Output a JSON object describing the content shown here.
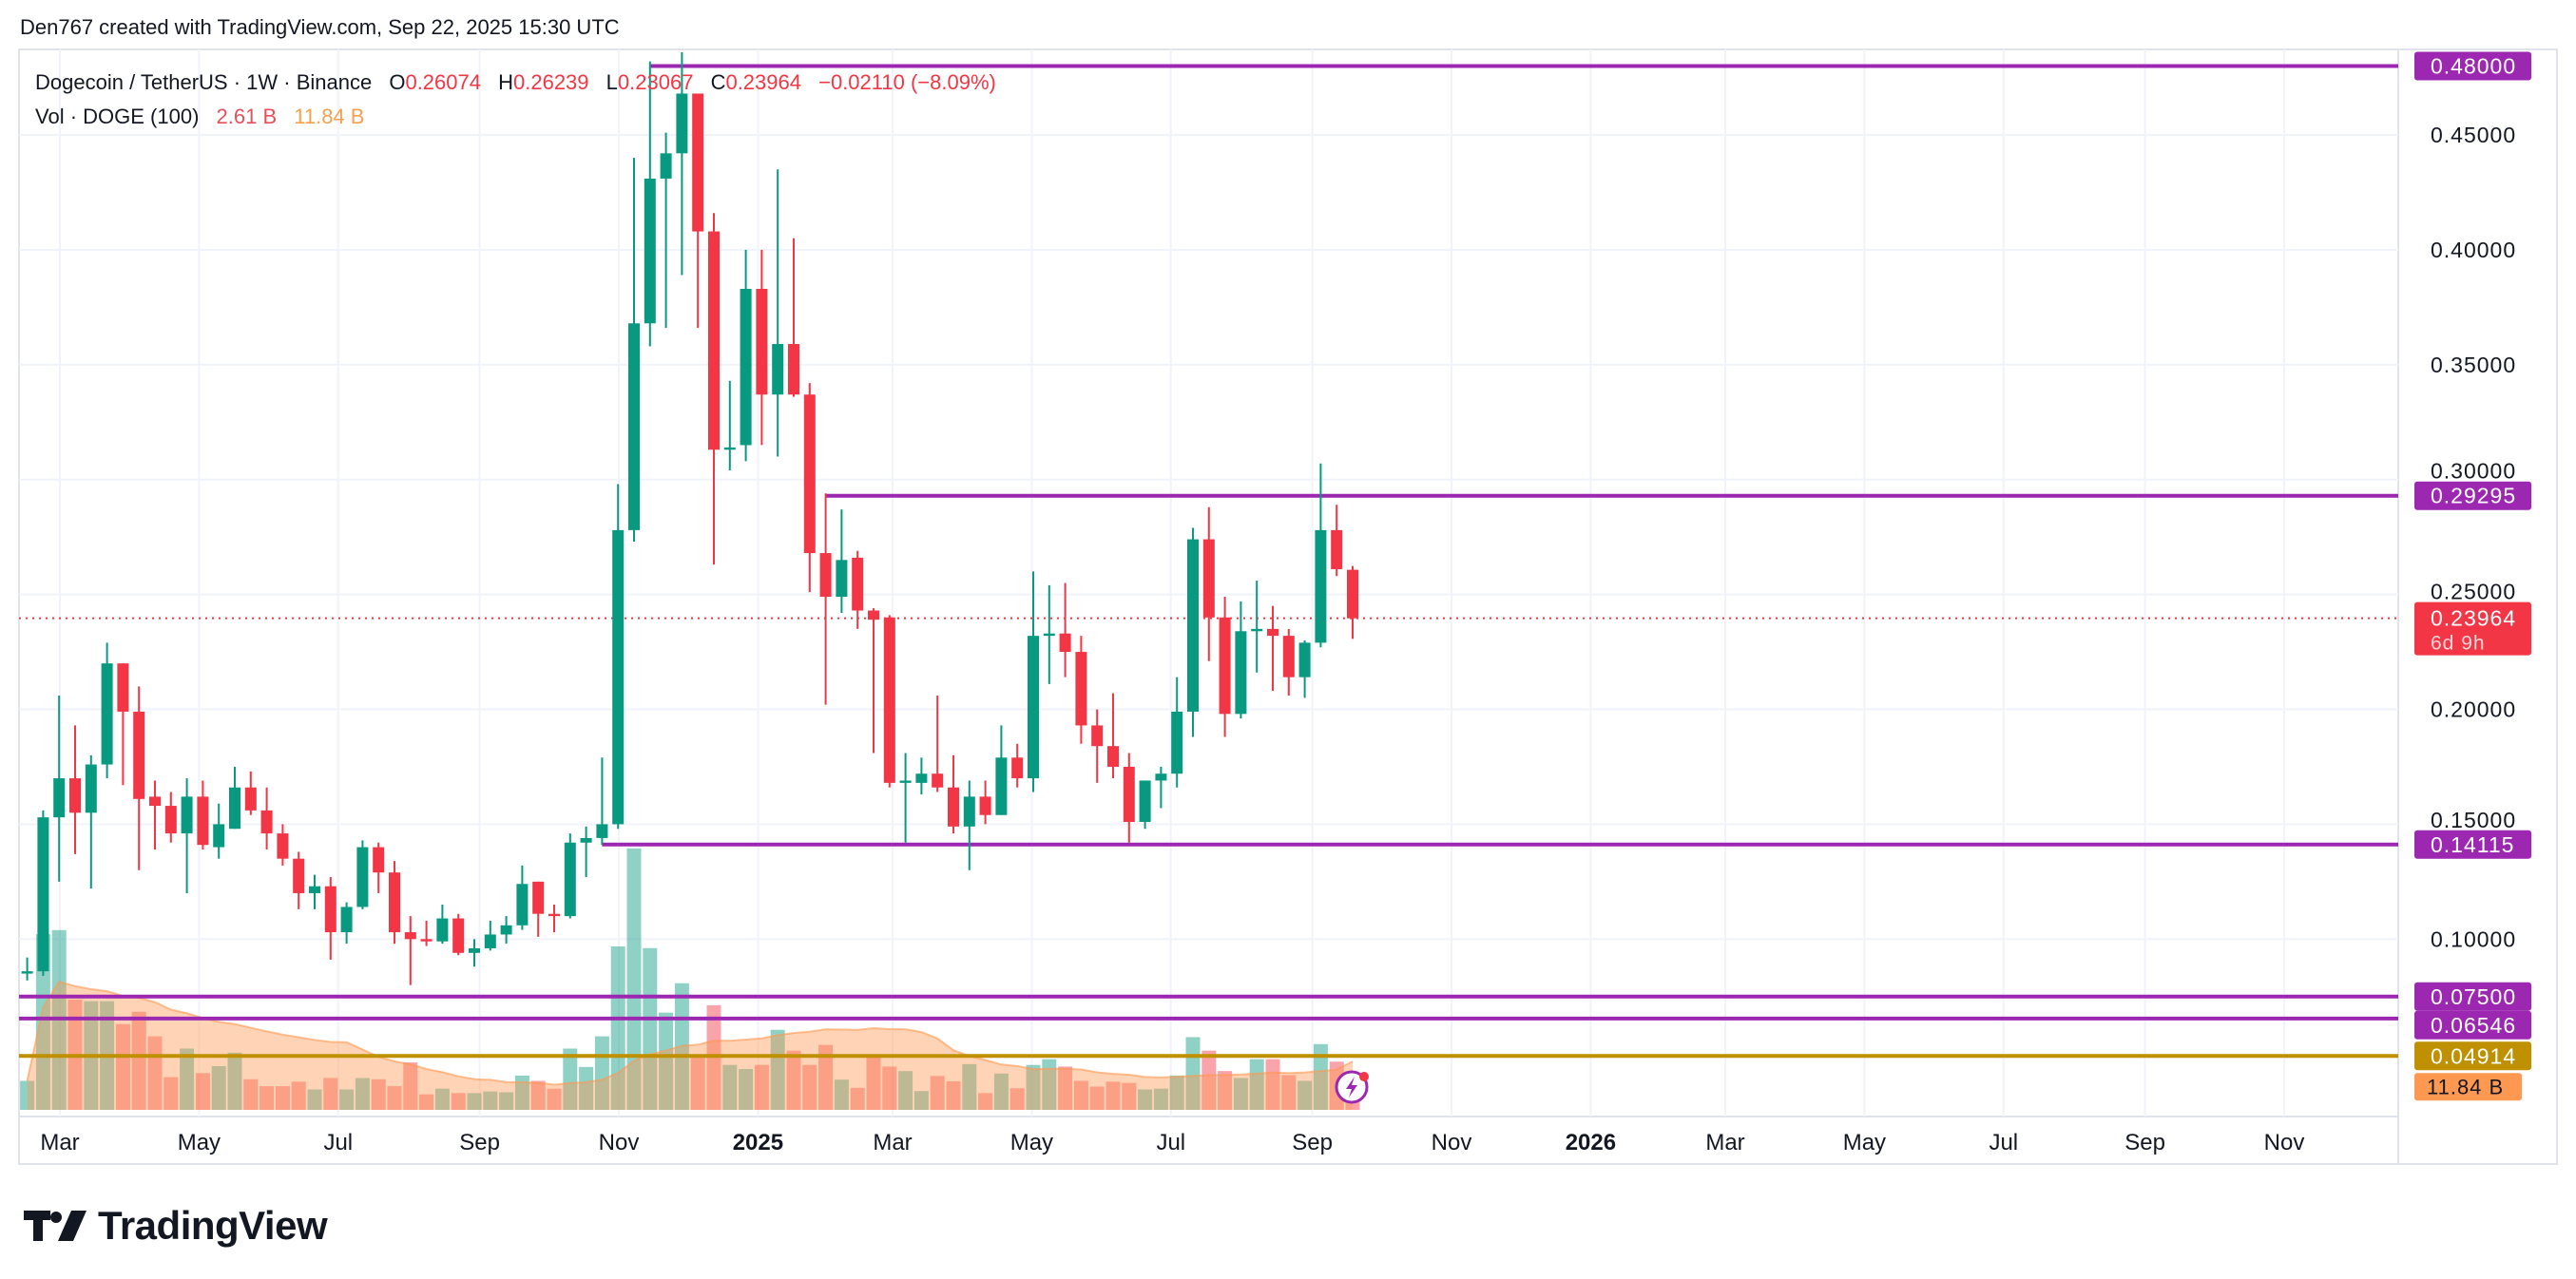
{
  "attribution": "Den767 created with TradingView.com, Sep 22, 2025 15:30 UTC",
  "legend": {
    "symbol": "Dogecoin / TetherUS · 1W · Binance",
    "o_label": "O",
    "o": "0.26074",
    "h_label": "H",
    "h": "0.26239",
    "l_label": "L",
    "l": "0.23067",
    "c_label": "C",
    "c": "0.23964",
    "change": "−0.02110 (−8.09%)",
    "vol_label": "Vol · DOGE (100)",
    "vol": "2.61 B",
    "vol_ma": "11.84 B"
  },
  "logo": {
    "text": "TradingView"
  },
  "colors": {
    "up": "#089981",
    "down": "#f23645",
    "level": "#9c27b0",
    "gold_level": "#bf9000",
    "vol_ma": "#ff9850",
    "grid": "#f0f3fa"
  },
  "chart_data": {
    "type": "candlestick",
    "interval": "1W",
    "ylim": [
      0.035,
      0.49
    ],
    "y_ticks": [
      "0.45000",
      "0.40000",
      "0.35000",
      "0.30000",
      "0.25000",
      "0.20000",
      "0.15000",
      "0.10000"
    ],
    "x_ticks": [
      {
        "label": "Mar",
        "date": "2024-03-01"
      },
      {
        "label": "May",
        "date": "2024-05-01"
      },
      {
        "label": "Jul",
        "date": "2024-07-01"
      },
      {
        "label": "Sep",
        "date": "2024-09-01"
      },
      {
        "label": "Nov",
        "date": "2024-11-01"
      },
      {
        "label": "2025",
        "date": "2025-01-01",
        "bold": true
      },
      {
        "label": "Mar",
        "date": "2025-03-01"
      },
      {
        "label": "May",
        "date": "2025-05-01"
      },
      {
        "label": "Jul",
        "date": "2025-07-01"
      },
      {
        "label": "Sep",
        "date": "2025-09-01"
      },
      {
        "label": "Nov",
        "date": "2025-11-01"
      },
      {
        "label": "2026",
        "date": "2026-01-01",
        "bold": true
      },
      {
        "label": "Mar",
        "date": "2026-03-01"
      },
      {
        "label": "May",
        "date": "2026-05-01"
      },
      {
        "label": "Jul",
        "date": "2026-07-01"
      },
      {
        "label": "Sep",
        "date": "2026-09-01"
      },
      {
        "label": "Nov",
        "date": "2026-11-01"
      }
    ],
    "candles_columns": [
      "date",
      "open",
      "high",
      "low",
      "close",
      "volume_B"
    ],
    "candles": [
      [
        "2024-02-19",
        0.085,
        0.092,
        0.082,
        0.086,
        7.1
      ],
      [
        "2024-02-26",
        0.086,
        0.156,
        0.084,
        0.153,
        43
      ],
      [
        "2024-03-04",
        0.153,
        0.206,
        0.125,
        0.17,
        44
      ],
      [
        "2024-03-11",
        0.17,
        0.193,
        0.137,
        0.155,
        27
      ],
      [
        "2024-03-18",
        0.155,
        0.18,
        0.122,
        0.176,
        26.6
      ],
      [
        "2024-03-25",
        0.176,
        0.229,
        0.17,
        0.22,
        26.6
      ],
      [
        "2024-04-01",
        0.22,
        0.22,
        0.167,
        0.199,
        21
      ],
      [
        "2024-04-08",
        0.199,
        0.21,
        0.13,
        0.161,
        24
      ],
      [
        "2024-04-15",
        0.162,
        0.169,
        0.139,
        0.158,
        18
      ],
      [
        "2024-04-22",
        0.158,
        0.164,
        0.142,
        0.146,
        8
      ],
      [
        "2024-04-29",
        0.146,
        0.17,
        0.12,
        0.162,
        15
      ],
      [
        "2024-05-06",
        0.162,
        0.169,
        0.139,
        0.141,
        9
      ],
      [
        "2024-05-13",
        0.14,
        0.159,
        0.135,
        0.15,
        10.7
      ],
      [
        "2024-05-20",
        0.148,
        0.175,
        0.148,
        0.166,
        14
      ],
      [
        "2024-05-27",
        0.166,
        0.173,
        0.154,
        0.156,
        7.5
      ],
      [
        "2024-06-03",
        0.156,
        0.166,
        0.139,
        0.146,
        5.8
      ],
      [
        "2024-06-10",
        0.146,
        0.15,
        0.132,
        0.135,
        5.8
      ],
      [
        "2024-06-17",
        0.135,
        0.138,
        0.113,
        0.12,
        6.9
      ],
      [
        "2024-06-24",
        0.12,
        0.128,
        0.113,
        0.123,
        5
      ],
      [
        "2024-07-01",
        0.123,
        0.127,
        0.091,
        0.103,
        7.8
      ],
      [
        "2024-07-08",
        0.103,
        0.116,
        0.098,
        0.114,
        5
      ],
      [
        "2024-07-15",
        0.114,
        0.143,
        0.113,
        0.14,
        7.8
      ],
      [
        "2024-07-22",
        0.14,
        0.142,
        0.12,
        0.129,
        7.5
      ],
      [
        "2024-07-29",
        0.129,
        0.134,
        0.098,
        0.103,
        5.8
      ],
      [
        "2024-08-05",
        0.103,
        0.11,
        0.08,
        0.1,
        11.6
      ],
      [
        "2024-08-12",
        0.1,
        0.108,
        0.097,
        0.099,
        3.8
      ],
      [
        "2024-08-19",
        0.099,
        0.115,
        0.098,
        0.109,
        5.2
      ],
      [
        "2024-08-26",
        0.109,
        0.111,
        0.093,
        0.094,
        4.1
      ],
      [
        "2024-09-02",
        0.094,
        0.1,
        0.088,
        0.096,
        4.1
      ],
      [
        "2024-09-09",
        0.096,
        0.108,
        0.095,
        0.102,
        4.5
      ],
      [
        "2024-09-16",
        0.102,
        0.11,
        0.098,
        0.106,
        4.3
      ],
      [
        "2024-09-23",
        0.106,
        0.132,
        0.104,
        0.124,
        8.4
      ],
      [
        "2024-09-30",
        0.125,
        0.125,
        0.101,
        0.111,
        7.1
      ],
      [
        "2024-10-07",
        0.111,
        0.115,
        0.103,
        0.11,
        5.2
      ],
      [
        "2024-10-14",
        0.11,
        0.146,
        0.109,
        0.142,
        15
      ],
      [
        "2024-10-21",
        0.142,
        0.149,
        0.127,
        0.144,
        10.5
      ],
      [
        "2024-10-28",
        0.144,
        0.179,
        0.141,
        0.15,
        18
      ],
      [
        "2024-11-04",
        0.15,
        0.298,
        0.148,
        0.278,
        40
      ],
      [
        "2024-11-11",
        0.278,
        0.44,
        0.273,
        0.368,
        64
      ],
      [
        "2024-11-18",
        0.368,
        0.482,
        0.358,
        0.431,
        39.6
      ],
      [
        "2024-11-25",
        0.431,
        0.451,
        0.366,
        0.442,
        23.8
      ],
      [
        "2024-12-02",
        0.442,
        0.486,
        0.389,
        0.468,
        31
      ],
      [
        "2024-12-09",
        0.468,
        0.468,
        0.366,
        0.408,
        13
      ],
      [
        "2024-12-16",
        0.408,
        0.416,
        0.263,
        0.313,
        25.6
      ],
      [
        "2024-12-23",
        0.313,
        0.343,
        0.304,
        0.314,
        11
      ],
      [
        "2024-12-30",
        0.315,
        0.4,
        0.308,
        0.383,
        10
      ],
      [
        "2025-01-06",
        0.383,
        0.4,
        0.315,
        0.337,
        11
      ],
      [
        "2025-01-13",
        0.337,
        0.435,
        0.31,
        0.359,
        19.6
      ],
      [
        "2025-01-20",
        0.359,
        0.405,
        0.336,
        0.337,
        14.5
      ],
      [
        "2025-01-27",
        0.337,
        0.342,
        0.251,
        0.268,
        11
      ],
      [
        "2025-02-03",
        0.268,
        0.294,
        0.202,
        0.249,
        15.9
      ],
      [
        "2025-02-10",
        0.249,
        0.287,
        0.242,
        0.265,
        7.4
      ],
      [
        "2025-02-17",
        0.266,
        0.269,
        0.235,
        0.243,
        5.4
      ],
      [
        "2025-02-24",
        0.243,
        0.244,
        0.181,
        0.239,
        13.4
      ],
      [
        "2025-03-03",
        0.24,
        0.241,
        0.166,
        0.168,
        10.6
      ],
      [
        "2025-03-10",
        0.168,
        0.181,
        0.142,
        0.169,
        9.5
      ],
      [
        "2025-03-17",
        0.168,
        0.179,
        0.163,
        0.172,
        4.6
      ],
      [
        "2025-03-24",
        0.172,
        0.206,
        0.164,
        0.166,
        8.3
      ],
      [
        "2025-03-31",
        0.166,
        0.18,
        0.146,
        0.149,
        7
      ],
      [
        "2025-04-07",
        0.149,
        0.169,
        0.13,
        0.162,
        11.2
      ],
      [
        "2025-04-14",
        0.162,
        0.169,
        0.15,
        0.154,
        4.1
      ],
      [
        "2025-04-21",
        0.154,
        0.193,
        0.154,
        0.179,
        8.9
      ],
      [
        "2025-04-28",
        0.179,
        0.185,
        0.166,
        0.17,
        5.3
      ],
      [
        "2025-05-05",
        0.17,
        0.26,
        0.164,
        0.232,
        11
      ],
      [
        "2025-05-12",
        0.232,
        0.254,
        0.211,
        0.233,
        12.4
      ],
      [
        "2025-05-19",
        0.233,
        0.255,
        0.214,
        0.225,
        10.6
      ],
      [
        "2025-05-26",
        0.225,
        0.232,
        0.185,
        0.193,
        7.1
      ],
      [
        "2025-06-02",
        0.193,
        0.2,
        0.168,
        0.184,
        5.7
      ],
      [
        "2025-06-09",
        0.184,
        0.207,
        0.17,
        0.175,
        6.9
      ],
      [
        "2025-06-16",
        0.175,
        0.181,
        0.142,
        0.151,
        6.6
      ],
      [
        "2025-06-23",
        0.151,
        0.169,
        0.148,
        0.169,
        5
      ],
      [
        "2025-06-30",
        0.169,
        0.175,
        0.157,
        0.172,
        5.2
      ],
      [
        "2025-07-07",
        0.172,
        0.214,
        0.166,
        0.199,
        8.4
      ],
      [
        "2025-07-14",
        0.199,
        0.279,
        0.188,
        0.274,
        17.8
      ],
      [
        "2025-07-21",
        0.274,
        0.288,
        0.221,
        0.24,
        14.5
      ],
      [
        "2025-07-28",
        0.24,
        0.249,
        0.188,
        0.198,
        9.5
      ],
      [
        "2025-08-04",
        0.198,
        0.247,
        0.196,
        0.234,
        7.8
      ],
      [
        "2025-08-11",
        0.234,
        0.256,
        0.216,
        0.235,
        12.4
      ],
      [
        "2025-08-18",
        0.235,
        0.245,
        0.208,
        0.232,
        12.4
      ],
      [
        "2025-08-25",
        0.232,
        0.235,
        0.206,
        0.214,
        8.5
      ],
      [
        "2025-09-01",
        0.214,
        0.23,
        0.205,
        0.229,
        7.1
      ],
      [
        "2025-09-08",
        0.229,
        0.307,
        0.227,
        0.278,
        16.1
      ],
      [
        "2025-09-15",
        0.278,
        0.289,
        0.258,
        0.261,
        11.8
      ],
      [
        "2025-09-22",
        0.26074,
        0.26239,
        0.23067,
        0.23964,
        2.61
      ]
    ],
    "horizontal_levels": [
      {
        "price": 0.48,
        "label": "0.48000",
        "from": "2024-11-18",
        "color": "#9c27b0"
      },
      {
        "price": 0.29295,
        "label": "0.29295",
        "from": "2025-02-03",
        "color": "#9c27b0"
      },
      {
        "price": 0.14115,
        "label": "0.14115",
        "from": "2024-10-28",
        "color": "#9c27b0"
      },
      {
        "price": 0.075,
        "label": "0.07500",
        "color": "#9c27b0"
      },
      {
        "price": 0.06546,
        "label": "0.06546",
        "color": "#9c27b0"
      },
      {
        "price": 0.04914,
        "label": "0.04914",
        "color": "#bf9000"
      }
    ],
    "last_price": {
      "price": 0.23964,
      "label": "0.23964",
      "countdown": "6d 9h"
    },
    "volume_ma_label": "11.84 B",
    "volume_ma_value_B": 11.84
  }
}
